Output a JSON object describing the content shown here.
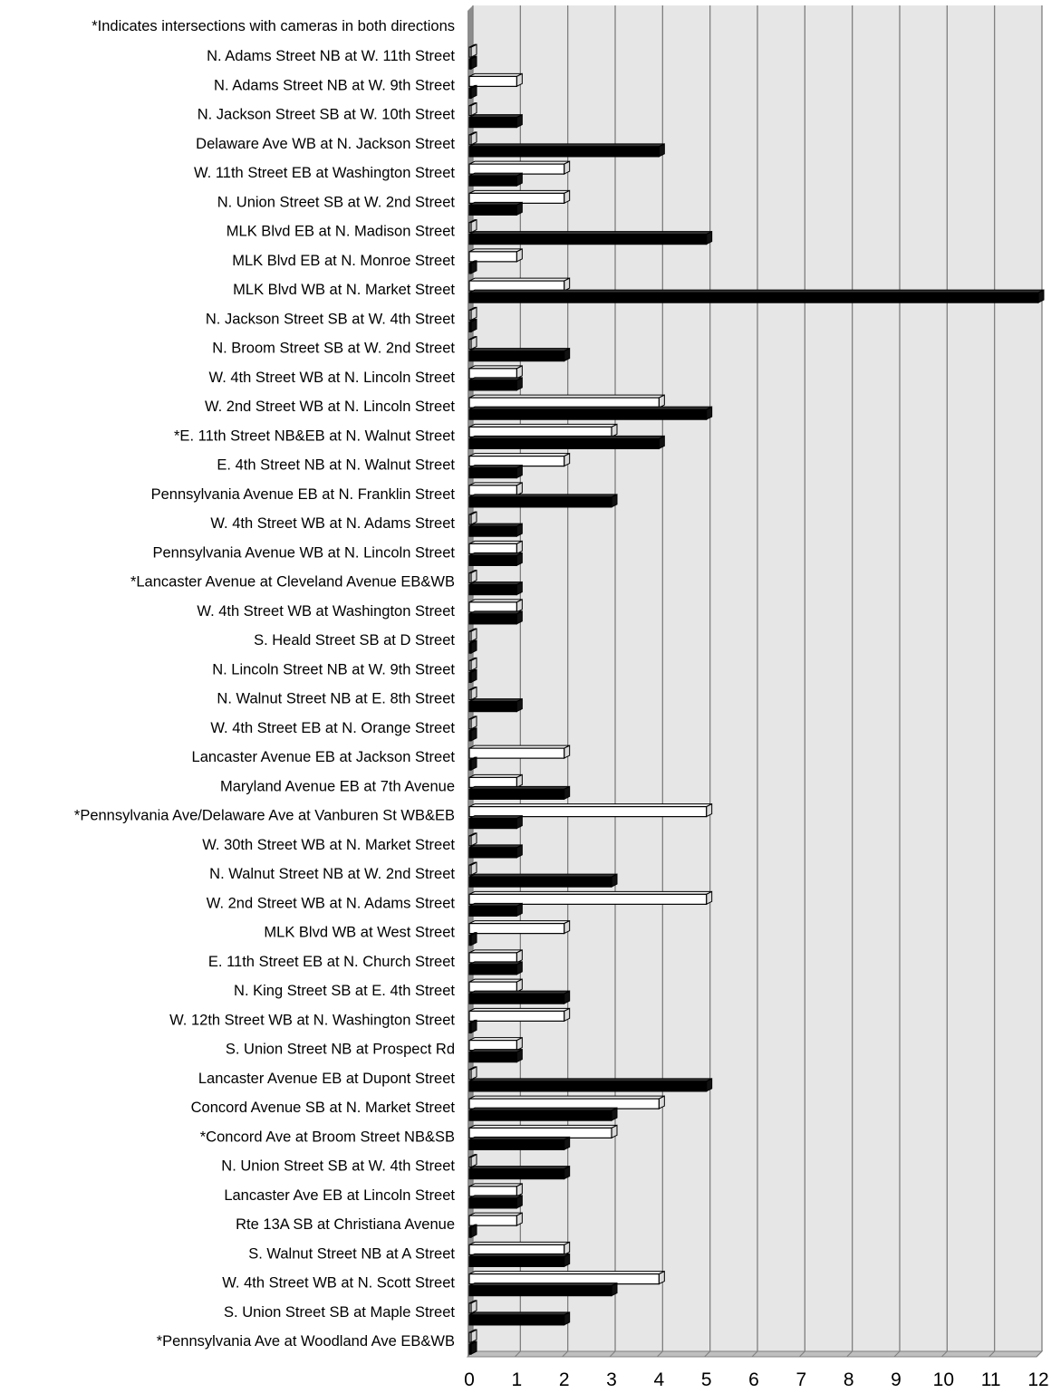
{
  "chart_data": {
    "type": "bar",
    "orientation": "horizontal",
    "note": "*Indicates intersections with cameras in both directions",
    "categories": [
      "N. Adams Street NB at W. 11th Street",
      "N. Adams Street NB at W. 9th Street",
      "N. Jackson Street SB at W. 10th Street",
      "Delaware Ave WB at N. Jackson Street",
      "W. 11th Street EB at Washington Street",
      "N. Union Street SB at W. 2nd Street",
      "MLK Blvd EB at N. Madison Street",
      "MLK Blvd EB at N. Monroe Street",
      "MLK Blvd WB at N. Market Street",
      "N. Jackson Street SB at W. 4th Street",
      "N. Broom Street SB at W. 2nd Street",
      "W. 4th Street WB at N. Lincoln Street",
      "W. 2nd Street WB at N. Lincoln Street",
      "*E. 11th Street NB&EB at N. Walnut Street",
      "E. 4th Street NB at N. Walnut Street",
      "Pennsylvania Avenue EB at N. Franklin Street",
      "W. 4th Street WB at N. Adams Street",
      "Pennsylvania Avenue WB at N. Lincoln Street",
      "*Lancaster Avenue at Cleveland Avenue EB&WB",
      "W. 4th Street WB at Washington Street",
      "S. Heald Street SB at D Street",
      "N. Lincoln Street NB at W. 9th Street",
      "N. Walnut Street NB at E. 8th Street",
      "W. 4th Street EB at N. Orange Street",
      "Lancaster Avenue EB at Jackson Street",
      "Maryland Avenue EB at 7th Avenue",
      "*Pennsylvania Ave/Delaware Ave at Vanburen St WB&EB",
      "W. 30th Street WB at N. Market Street",
      "N. Walnut Street NB at W. 2nd Street",
      "W. 2nd Street WB at N. Adams Street",
      "MLK Blvd WB at West Street",
      "E. 11th Street EB at N. Church Street",
      "N. King Street SB at E. 4th Street",
      "W. 12th Street WB at N. Washington Street",
      "S. Union Street NB at Prospect Rd",
      "Lancaster Avenue EB at Dupont Street",
      "Concord Avenue SB at N. Market Street",
      "*Concord Ave at Broom Street NB&SB",
      "N. Union Street SB at W. 4th Street",
      "Lancaster Ave EB at Lincoln Street",
      "Rte 13A SB at Christiana Avenue",
      "S. Walnut Street NB at A Street",
      "W. 4th Street WB at N. Scott Street",
      "S. Union Street SB at Maple Street",
      "*Pennsylvania Ave at Woodland Ave EB&WB"
    ],
    "series": [
      {
        "color": "#ffffff",
        "values": [
          0,
          1,
          0,
          0,
          2,
          2,
          0,
          1,
          2,
          0,
          0,
          1,
          4,
          3,
          2,
          1,
          0,
          1,
          0,
          1,
          0,
          0,
          0,
          0,
          2,
          1,
          5,
          0,
          0,
          5,
          2,
          1,
          1,
          2,
          1,
          0,
          4,
          3,
          0,
          1,
          1,
          2,
          4,
          0,
          0
        ]
      },
      {
        "color": "#000000",
        "values": [
          0,
          0,
          1,
          4,
          1,
          1,
          5,
          0,
          12,
          0,
          2,
          1,
          5,
          4,
          1,
          3,
          1,
          1,
          1,
          1,
          0,
          0,
          1,
          0,
          0,
          2,
          1,
          1,
          3,
          1,
          0,
          1,
          2,
          0,
          1,
          5,
          3,
          2,
          2,
          1,
          0,
          2,
          3,
          2,
          0
        ]
      }
    ],
    "xlim": [
      0,
      12
    ],
    "xticks": [
      "0",
      "1",
      "2",
      "3",
      "4",
      "5",
      "6",
      "7",
      "8",
      "9",
      "10",
      "11",
      "12"
    ],
    "grid": true,
    "xlabel": "",
    "ylabel": "",
    "colors": {
      "plot_bg": "#e6e6e6",
      "gridline": "#7f7f7f",
      "wall": "#8c8c8c",
      "outline": "#000000"
    }
  }
}
